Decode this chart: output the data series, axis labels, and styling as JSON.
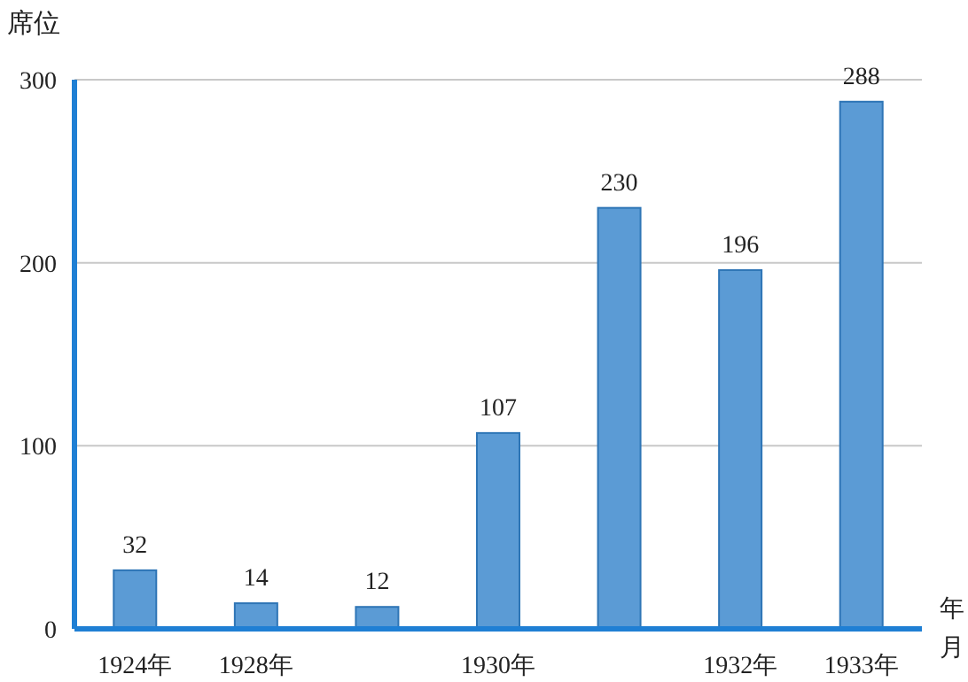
{
  "chart_data": {
    "type": "bar",
    "ylabel": "席位",
    "xlabel": "年月",
    "categories": [
      "1924年",
      "1928年",
      null,
      "1930年",
      null,
      "1932年",
      "1933年"
    ],
    "values": [
      32,
      14,
      12,
      107,
      230,
      196,
      288
    ],
    "color": "#5b9bd5",
    "ylim": [
      0,
      300
    ],
    "yticks": [
      0,
      100,
      200,
      300
    ],
    "grid": "y",
    "data_labels": true
  }
}
